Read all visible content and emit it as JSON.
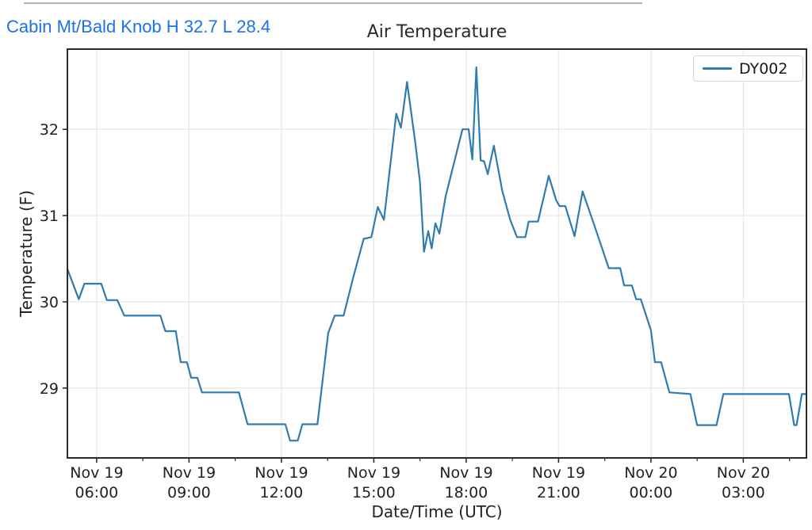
{
  "header": {
    "station_link": "Cabin Mt/Bald Knob H 32.7 L 28.4",
    "link_color": "#1a73e8",
    "stats_shown_in_link": {
      "high_f": 32.7,
      "low_f": 28.4
    }
  },
  "chart_data": {
    "type": "line",
    "title": "Air Temperature",
    "xlabel": "Date/Time (UTC)",
    "ylabel": "Temperature (F)",
    "grid": true,
    "grid_color": "#e8e8e8",
    "spine_color": "#2a2a2a",
    "line_color": "#2e7cb0",
    "legend": {
      "position": "upper right",
      "entries": [
        "DY002"
      ]
    },
    "xlim_hours_from_nov19_0000_utc": [
      5.05,
      29.05
    ],
    "ylim": [
      28.19,
      32.93
    ],
    "y_ticks": [
      29,
      30,
      31,
      32
    ],
    "x_ticks": [
      {
        "t": 6,
        "date": "Nov 19",
        "time": "06:00"
      },
      {
        "t": 9,
        "date": "Nov 19",
        "time": "09:00"
      },
      {
        "t": 12,
        "date": "Nov 19",
        "time": "12:00"
      },
      {
        "t": 15,
        "date": "Nov 19",
        "time": "15:00"
      },
      {
        "t": 18,
        "date": "Nov 19",
        "time": "18:00"
      },
      {
        "t": 21,
        "date": "Nov 19",
        "time": "21:00"
      },
      {
        "t": 24,
        "date": "Nov 20",
        "time": "00:00"
      },
      {
        "t": 27,
        "date": "Nov 20",
        "time": "03:00"
      }
    ],
    "x_minor_ticks": [
      7.5,
      10.5,
      13.5,
      16.5,
      19.5,
      22.5,
      25.5,
      28.5
    ],
    "series": [
      {
        "name": "DY002",
        "points": [
          [
            5.05,
            30.38
          ],
          [
            5.42,
            30.03
          ],
          [
            5.6,
            30.21
          ],
          [
            6.15,
            30.21
          ],
          [
            6.33,
            30.02
          ],
          [
            6.67,
            30.02
          ],
          [
            6.9,
            29.84
          ],
          [
            8.07,
            29.84
          ],
          [
            8.23,
            29.66
          ],
          [
            8.57,
            29.66
          ],
          [
            8.73,
            29.3
          ],
          [
            8.93,
            29.3
          ],
          [
            9.07,
            29.12
          ],
          [
            9.27,
            29.12
          ],
          [
            9.42,
            28.95
          ],
          [
            10.62,
            28.95
          ],
          [
            10.9,
            28.58
          ],
          [
            12.13,
            28.58
          ],
          [
            12.28,
            28.39
          ],
          [
            12.53,
            28.39
          ],
          [
            12.68,
            28.58
          ],
          [
            13.17,
            28.58
          ],
          [
            13.52,
            29.64
          ],
          [
            13.73,
            29.84
          ],
          [
            14.02,
            29.84
          ],
          [
            14.33,
            30.28
          ],
          [
            14.67,
            30.73
          ],
          [
            14.92,
            30.75
          ],
          [
            15.13,
            31.1
          ],
          [
            15.33,
            30.95
          ],
          [
            15.73,
            32.18
          ],
          [
            15.88,
            32.02
          ],
          [
            16.08,
            32.55
          ],
          [
            16.35,
            31.84
          ],
          [
            16.5,
            31.39
          ],
          [
            16.63,
            30.58
          ],
          [
            16.77,
            30.82
          ],
          [
            16.88,
            30.62
          ],
          [
            17.0,
            30.91
          ],
          [
            17.13,
            30.79
          ],
          [
            17.33,
            31.22
          ],
          [
            17.88,
            32.0
          ],
          [
            18.08,
            32.0
          ],
          [
            18.2,
            31.65
          ],
          [
            18.33,
            32.72
          ],
          [
            18.47,
            31.64
          ],
          [
            18.58,
            31.63
          ],
          [
            18.7,
            31.48
          ],
          [
            18.9,
            31.81
          ],
          [
            19.17,
            31.29
          ],
          [
            19.43,
            30.95
          ],
          [
            19.65,
            30.75
          ],
          [
            19.92,
            30.75
          ],
          [
            20.03,
            30.93
          ],
          [
            20.33,
            30.93
          ],
          [
            20.68,
            31.46
          ],
          [
            20.92,
            31.18
          ],
          [
            21.03,
            31.11
          ],
          [
            21.22,
            31.11
          ],
          [
            21.52,
            30.76
          ],
          [
            21.78,
            31.28
          ],
          [
            22.12,
            30.93
          ],
          [
            22.47,
            30.56
          ],
          [
            22.63,
            30.39
          ],
          [
            23.0,
            30.39
          ],
          [
            23.13,
            30.19
          ],
          [
            23.38,
            30.19
          ],
          [
            23.52,
            30.03
          ],
          [
            23.67,
            30.03
          ],
          [
            24.0,
            29.67
          ],
          [
            24.13,
            29.3
          ],
          [
            24.33,
            29.3
          ],
          [
            24.6,
            28.95
          ],
          [
            25.28,
            28.93
          ],
          [
            25.5,
            28.57
          ],
          [
            26.13,
            28.57
          ],
          [
            26.35,
            28.93
          ],
          [
            28.48,
            28.93
          ],
          [
            28.65,
            28.57
          ],
          [
            28.73,
            28.57
          ],
          [
            28.9,
            28.93
          ],
          [
            29.05,
            28.93
          ]
        ]
      }
    ]
  }
}
